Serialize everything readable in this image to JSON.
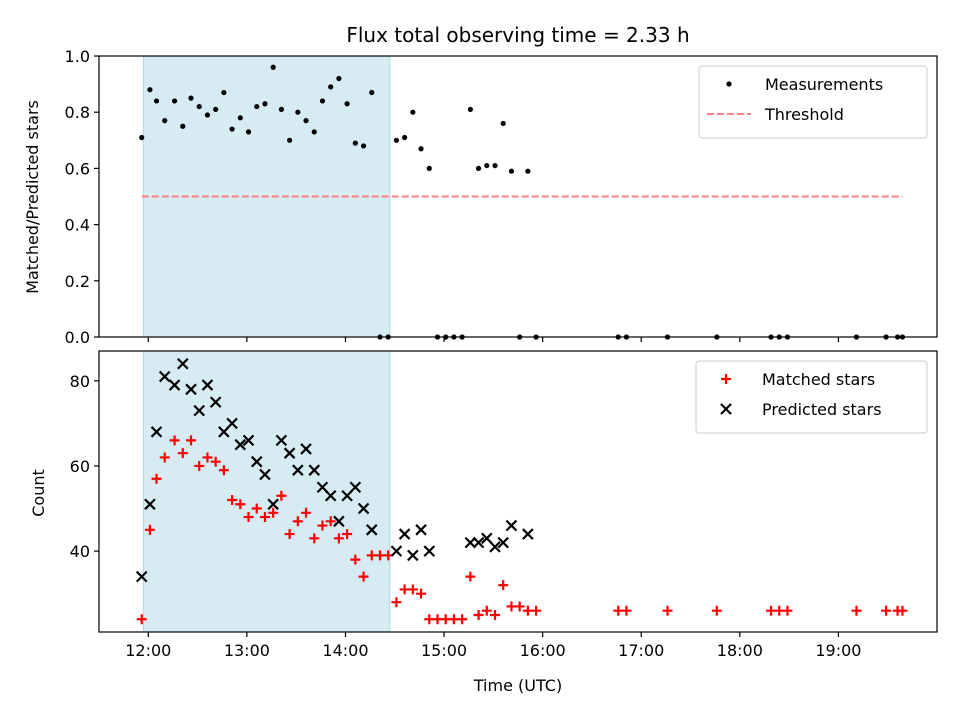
{
  "chart_data": {
    "title": "Flux total observing time = 2.33 h",
    "shaded_interval": [
      "11:57",
      "14:27"
    ],
    "x_axis": {
      "label": "Time (UTC)",
      "range": [
        "11:30",
        "20:00"
      ],
      "ticks": [
        "12:00",
        "13:00",
        "14:00",
        "15:00",
        "16:00",
        "17:00",
        "18:00",
        "19:00"
      ]
    },
    "panels": [
      {
        "type": "scatter",
        "ylabel": "Matched/Predicted stars",
        "ylim": [
          0,
          1.0
        ],
        "yticks": [
          "0.0",
          "0.2",
          "0.4",
          "0.6",
          "0.8",
          "1.0"
        ],
        "legend_position": "top-right",
        "series": [
          {
            "name": "Measurements",
            "marker": "dot",
            "color": "#000000",
            "points": [
              [
                "11:56",
                0.71
              ],
              [
                "12:01",
                0.88
              ],
              [
                "12:05",
                0.84
              ],
              [
                "12:10",
                0.77
              ],
              [
                "12:16",
                0.84
              ],
              [
                "12:21",
                0.75
              ],
              [
                "12:26",
                0.85
              ],
              [
                "12:31",
                0.82
              ],
              [
                "12:36",
                0.79
              ],
              [
                "12:41",
                0.81
              ],
              [
                "12:46",
                0.87
              ],
              [
                "12:51",
                0.74
              ],
              [
                "12:56",
                0.78
              ],
              [
                "13:01",
                0.73
              ],
              [
                "13:06",
                0.82
              ],
              [
                "13:11",
                0.83
              ],
              [
                "13:16",
                0.96
              ],
              [
                "13:21",
                0.81
              ],
              [
                "13:26",
                0.7
              ],
              [
                "13:31",
                0.8
              ],
              [
                "13:36",
                0.77
              ],
              [
                "13:41",
                0.73
              ],
              [
                "13:46",
                0.84
              ],
              [
                "13:51",
                0.89
              ],
              [
                "13:56",
                0.92
              ],
              [
                "14:01",
                0.83
              ],
              [
                "14:06",
                0.69
              ],
              [
                "14:11",
                0.68
              ],
              [
                "14:16",
                0.87
              ],
              [
                "14:21",
                0.0
              ],
              [
                "14:26",
                0.0
              ],
              [
                "14:31",
                0.7
              ],
              [
                "14:36",
                0.71
              ],
              [
                "14:41",
                0.8
              ],
              [
                "14:46",
                0.67
              ],
              [
                "14:51",
                0.6
              ],
              [
                "14:56",
                0.0
              ],
              [
                "15:01",
                0.0
              ],
              [
                "15:06",
                0.0
              ],
              [
                "15:11",
                0.0
              ],
              [
                "15:16",
                0.81
              ],
              [
                "15:21",
                0.6
              ],
              [
                "15:26",
                0.61
              ],
              [
                "15:31",
                0.61
              ],
              [
                "15:36",
                0.76
              ],
              [
                "15:41",
                0.59
              ],
              [
                "15:46",
                0.0
              ],
              [
                "15:51",
                0.59
              ],
              [
                "15:56",
                0.0
              ],
              [
                "16:46",
                0.0
              ],
              [
                "16:51",
                0.0
              ],
              [
                "17:16",
                0.0
              ],
              [
                "17:46",
                0.0
              ],
              [
                "18:19",
                0.0
              ],
              [
                "18:24",
                0.0
              ],
              [
                "18:29",
                0.0
              ],
              [
                "19:11",
                0.0
              ],
              [
                "19:29",
                0.0
              ],
              [
                "19:36",
                0.0
              ],
              [
                "19:39",
                0.0
              ]
            ]
          },
          {
            "name": "Threshold",
            "marker": "dashed-line",
            "color": "#ff8080",
            "points": [
              [
                "11:56",
                0.5
              ],
              [
                "19:39",
                0.5
              ]
            ]
          }
        ]
      },
      {
        "type": "scatter",
        "ylabel": "Count",
        "ylim": [
          21,
          87
        ],
        "yticks": [
          "40",
          "60",
          "80"
        ],
        "legend_position": "top-right",
        "series": [
          {
            "name": "Matched stars",
            "marker": "plus",
            "color": "#ff0000",
            "points": [
              [
                "11:56",
                24
              ],
              [
                "12:01",
                45
              ],
              [
                "12:05",
                57
              ],
              [
                "12:10",
                62
              ],
              [
                "12:16",
                66
              ],
              [
                "12:21",
                63
              ],
              [
                "12:26",
                66
              ],
              [
                "12:31",
                60
              ],
              [
                "12:36",
                62
              ],
              [
                "12:41",
                61
              ],
              [
                "12:46",
                59
              ],
              [
                "12:51",
                52
              ],
              [
                "12:56",
                51
              ],
              [
                "13:01",
                48
              ],
              [
                "13:06",
                50
              ],
              [
                "13:11",
                48
              ],
              [
                "13:16",
                49
              ],
              [
                "13:21",
                53
              ],
              [
                "13:26",
                44
              ],
              [
                "13:31",
                47
              ],
              [
                "13:36",
                49
              ],
              [
                "13:41",
                43
              ],
              [
                "13:46",
                46
              ],
              [
                "13:51",
                47
              ],
              [
                "13:56",
                43
              ],
              [
                "14:01",
                44
              ],
              [
                "14:06",
                38
              ],
              [
                "14:11",
                34
              ],
              [
                "14:16",
                39
              ],
              [
                "14:21",
                39
              ],
              [
                "14:26",
                39
              ],
              [
                "14:31",
                28
              ],
              [
                "14:36",
                31
              ],
              [
                "14:41",
                31
              ],
              [
                "14:46",
                30
              ],
              [
                "14:51",
                24
              ],
              [
                "14:56",
                24
              ],
              [
                "15:01",
                24
              ],
              [
                "15:06",
                24
              ],
              [
                "15:11",
                24
              ],
              [
                "15:16",
                34
              ],
              [
                "15:21",
                25
              ],
              [
                "15:26",
                26
              ],
              [
                "15:31",
                25
              ],
              [
                "15:36",
                32
              ],
              [
                "15:41",
                27
              ],
              [
                "15:46",
                27
              ],
              [
                "15:51",
                26
              ],
              [
                "15:56",
                26
              ],
              [
                "16:46",
                26
              ],
              [
                "16:51",
                26
              ],
              [
                "17:16",
                26
              ],
              [
                "17:46",
                26
              ],
              [
                "18:19",
                26
              ],
              [
                "18:24",
                26
              ],
              [
                "18:29",
                26
              ],
              [
                "19:11",
                26
              ],
              [
                "19:29",
                26
              ],
              [
                "19:36",
                26
              ],
              [
                "19:39",
                26
              ]
            ]
          },
          {
            "name": "Predicted stars",
            "marker": "x",
            "color": "#000000",
            "points": [
              [
                "11:56",
                34
              ],
              [
                "12:01",
                51
              ],
              [
                "12:05",
                68
              ],
              [
                "12:10",
                81
              ],
              [
                "12:16",
                79
              ],
              [
                "12:21",
                84
              ],
              [
                "12:26",
                78
              ],
              [
                "12:31",
                73
              ],
              [
                "12:36",
                79
              ],
              [
                "12:41",
                75
              ],
              [
                "12:46",
                68
              ],
              [
                "12:51",
                70
              ],
              [
                "12:56",
                65
              ],
              [
                "13:01",
                66
              ],
              [
                "13:06",
                61
              ],
              [
                "13:11",
                58
              ],
              [
                "13:16",
                51
              ],
              [
                "13:21",
                66
              ],
              [
                "13:26",
                63
              ],
              [
                "13:31",
                59
              ],
              [
                "13:36",
                64
              ],
              [
                "13:41",
                59
              ],
              [
                "13:46",
                55
              ],
              [
                "13:51",
                53
              ],
              [
                "13:56",
                47
              ],
              [
                "14:01",
                53
              ],
              [
                "14:06",
                55
              ],
              [
                "14:11",
                50
              ],
              [
                "14:16",
                45
              ],
              [
                "14:31",
                40
              ],
              [
                "14:36",
                44
              ],
              [
                "14:41",
                39
              ],
              [
                "14:46",
                45
              ],
              [
                "14:51",
                40
              ],
              [
                "15:16",
                42
              ],
              [
                "15:21",
                42
              ],
              [
                "15:26",
                43
              ],
              [
                "15:31",
                41
              ],
              [
                "15:36",
                42
              ],
              [
                "15:41",
                46
              ],
              [
                "15:51",
                44
              ]
            ]
          }
        ]
      }
    ]
  }
}
